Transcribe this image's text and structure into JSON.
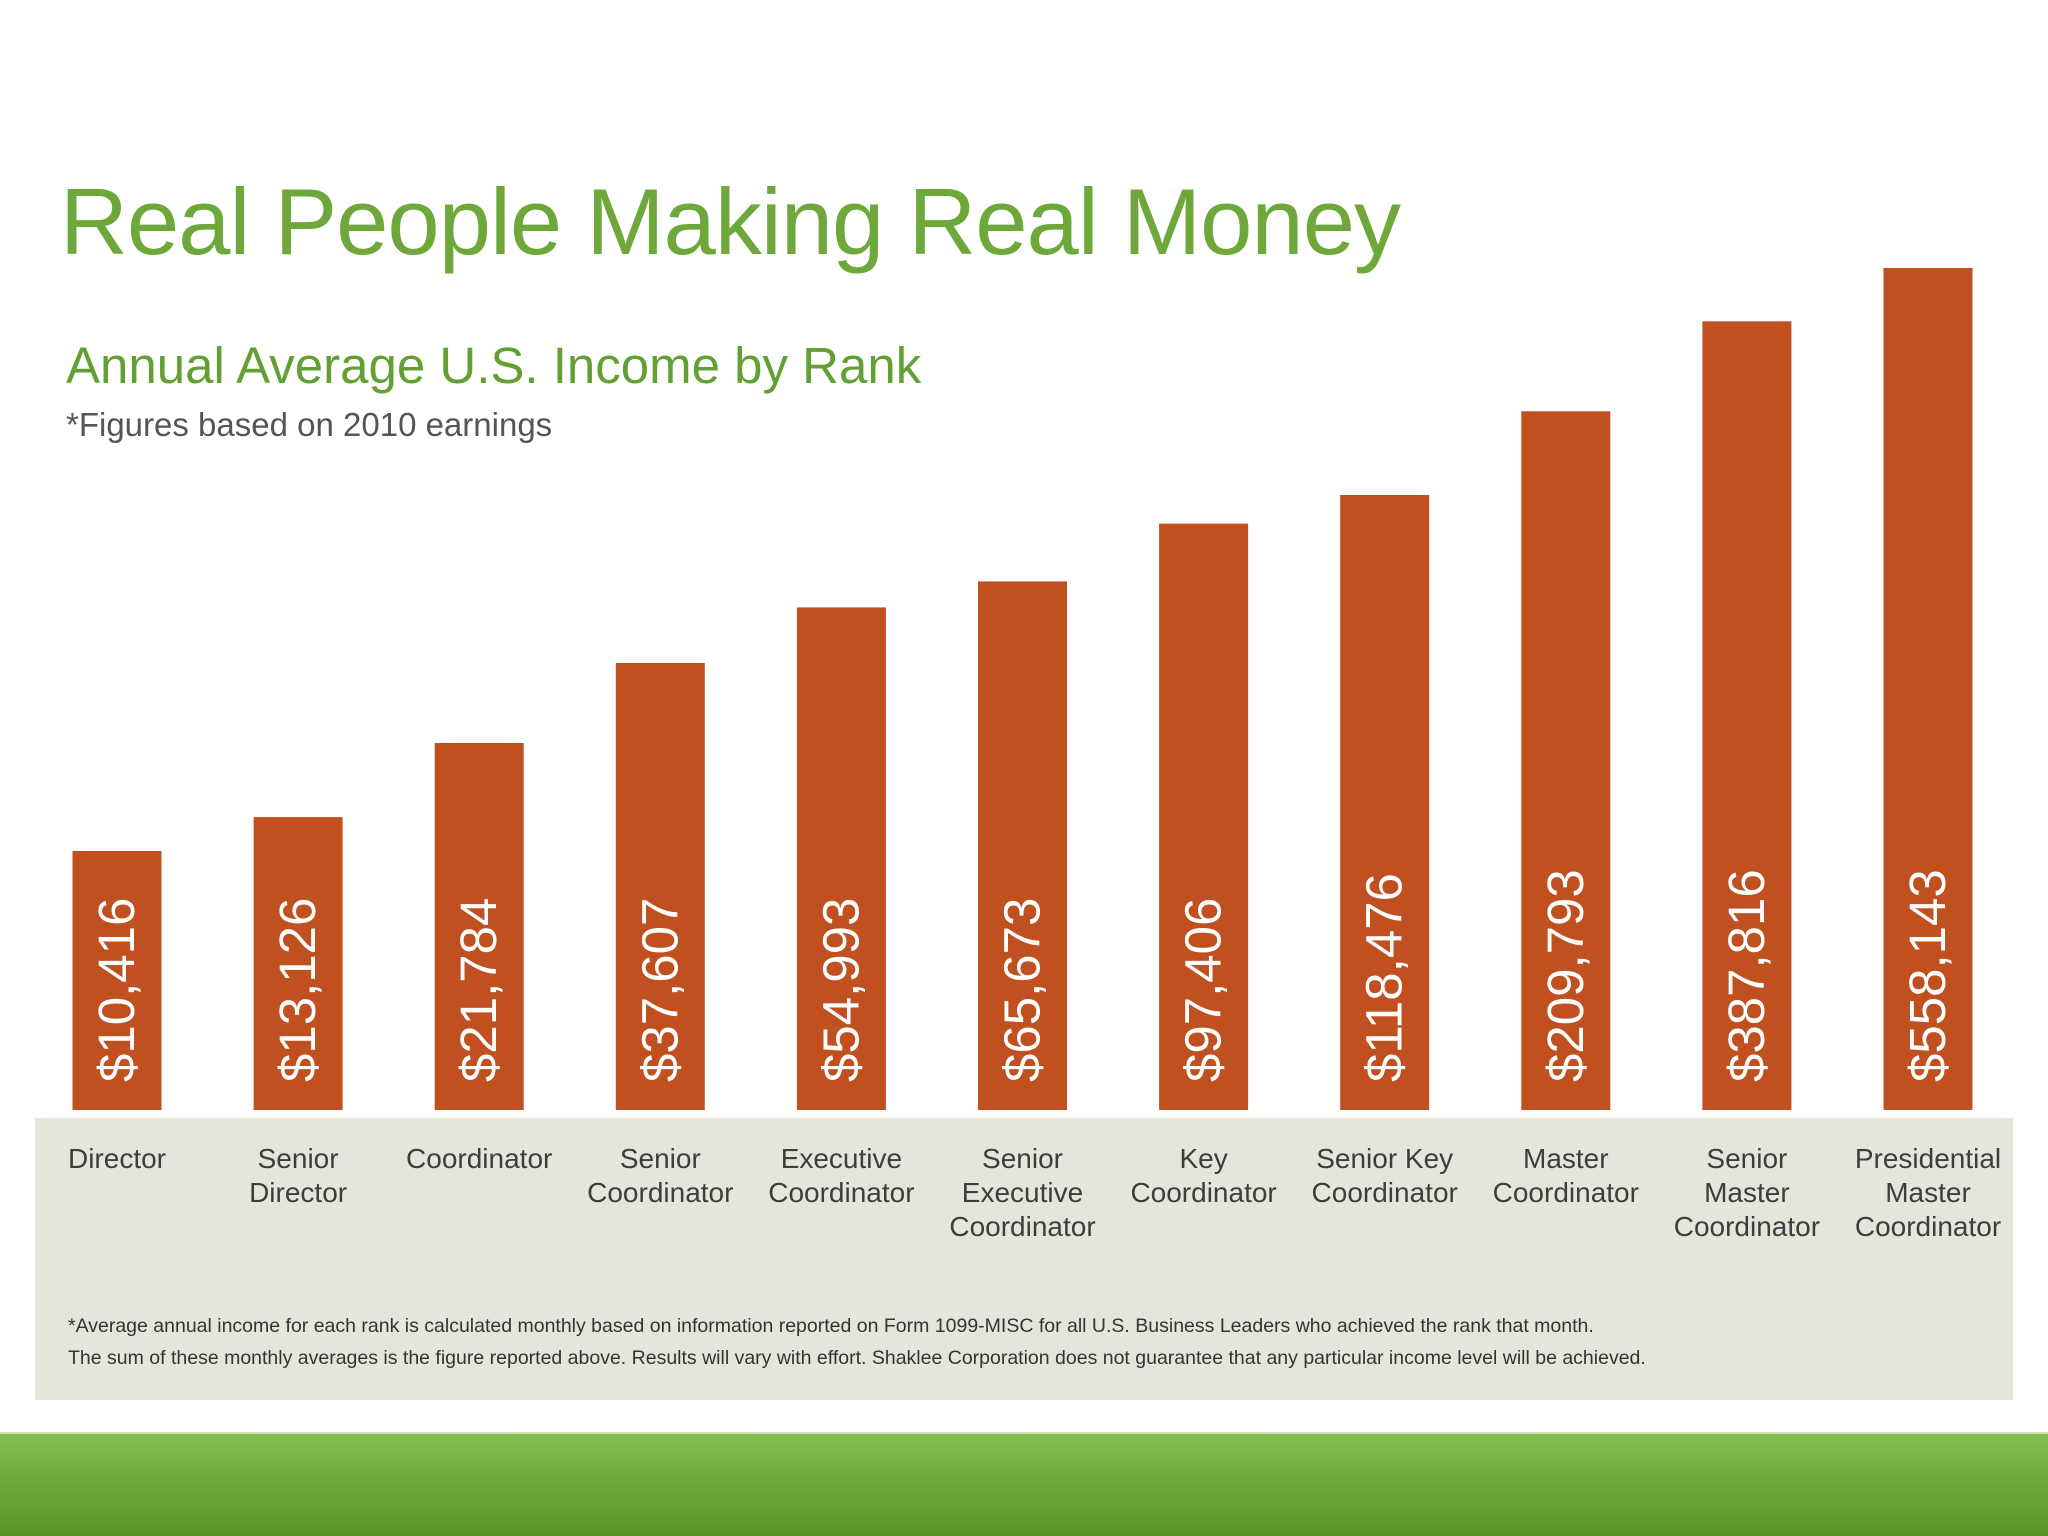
{
  "header": {
    "title": "Real People Making Real Money",
    "subtitle": "Annual Average U.S. Income by Rank",
    "note": "*Figures based on 2010 earnings"
  },
  "footnote": {
    "line1": "*Average annual income for each rank is calculated monthly based on information reported on Form 1099-MISC for all U.S. Business Leaders who achieved the rank that month.",
    "line2": "The sum of these monthly averages is the figure reported above. Results will vary with effort. Shaklee Corporation does not guarantee that any particular income level will be achieved."
  },
  "colors": {
    "bar": "#c0501f",
    "title_green": "#6fa83a",
    "label_panel": "#e4e6dc",
    "bottom_band": "#6eaa3a"
  },
  "chart_data": {
    "type": "bar",
    "title": "Annual Average U.S. Income by Rank",
    "xlabel": "",
    "ylabel": "",
    "scale": "log",
    "grid": false,
    "legend": "none",
    "categories": [
      [
        "Director"
      ],
      [
        "Senior",
        "Director"
      ],
      [
        "Coordinator"
      ],
      [
        "Senior",
        "Coordinator"
      ],
      [
        "Executive",
        "Coordinator"
      ],
      [
        "Senior",
        "Executive",
        "Coordinator"
      ],
      [
        "Key",
        "Coordinator"
      ],
      [
        "Senior Key",
        "Coordinator"
      ],
      [
        "Master",
        "Coordinator"
      ],
      [
        "Senior",
        "Master",
        "Coordinator"
      ],
      [
        "Presidential",
        "Master",
        "Coordinator"
      ]
    ],
    "values": [
      10416,
      13126,
      21784,
      37607,
      54993,
      65673,
      97406,
      118476,
      209793,
      387816,
      558143
    ],
    "value_labels": [
      "$10,416",
      "$13,126",
      "$21,784",
      "$37,607",
      "$54,993",
      "$65,673",
      "$97,406",
      "$118,476",
      "$209,793",
      "$387,816",
      "$558,143"
    ]
  }
}
